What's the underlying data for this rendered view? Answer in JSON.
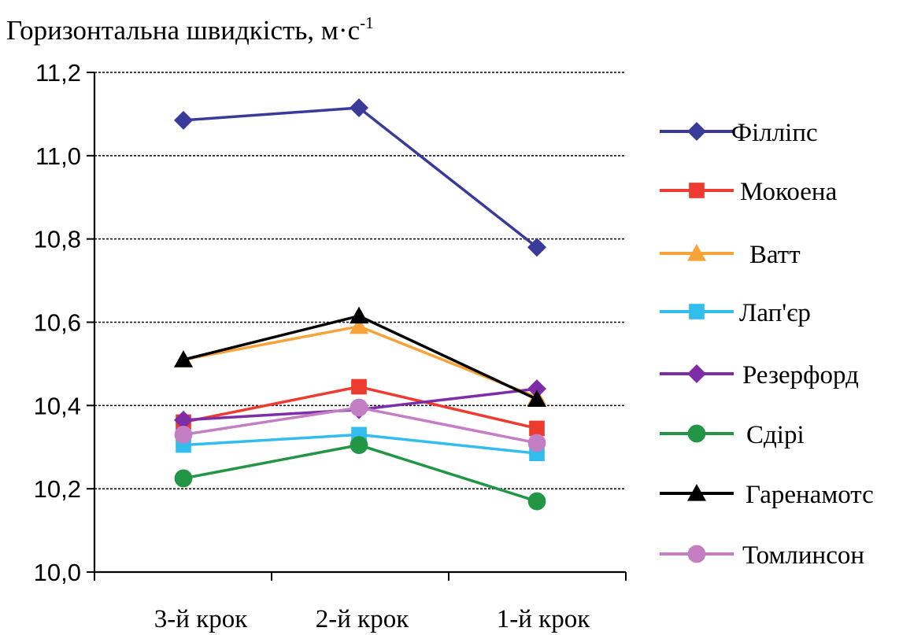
{
  "chart_data": {
    "type": "line",
    "title": "Горизонтальна швидкість, м·с",
    "title_superscript": "-1",
    "categories": [
      "3-й крок",
      "2-й крок",
      "1-й крок"
    ],
    "ylim": [
      10.0,
      11.2
    ],
    "yticks": [
      "10,0",
      "10,2",
      "10,4",
      "10,6",
      "10,8",
      "11,0",
      "11,2"
    ],
    "ytick_values": [
      10.0,
      10.2,
      10.4,
      10.6,
      10.8,
      11.0,
      11.2
    ],
    "grid": true,
    "legend_position": "right",
    "series": [
      {
        "name": "Філліпс",
        "values": [
          11.085,
          11.115,
          10.78
        ],
        "color": "#3a3a9a",
        "marker": "diamond"
      },
      {
        "name": "Мокоена",
        "values": [
          10.36,
          10.445,
          10.345
        ],
        "color": "#ee3b30",
        "marker": "square"
      },
      {
        "name": "Ватт",
        "values": [
          10.51,
          10.59,
          10.42
        ],
        "color": "#f8a23a",
        "marker": "triangle"
      },
      {
        "name": "Лап'єр",
        "values": [
          10.305,
          10.33,
          10.285
        ],
        "color": "#33bdee",
        "marker": "square"
      },
      {
        "name": "Резерфорд",
        "values": [
          10.365,
          10.39,
          10.44
        ],
        "color": "#7d2ea6",
        "marker": "diamond"
      },
      {
        "name": "Сдірі",
        "values": [
          10.225,
          10.305,
          10.17
        ],
        "color": "#239646",
        "marker": "circle"
      },
      {
        "name": "Гаренамотс",
        "values": [
          10.51,
          10.615,
          10.415
        ],
        "color": "#000000",
        "marker": "triangle"
      },
      {
        "name": "Томлинсон",
        "values": [
          10.33,
          10.395,
          10.31
        ],
        "color": "#c47fc4",
        "marker": "circle"
      }
    ]
  }
}
